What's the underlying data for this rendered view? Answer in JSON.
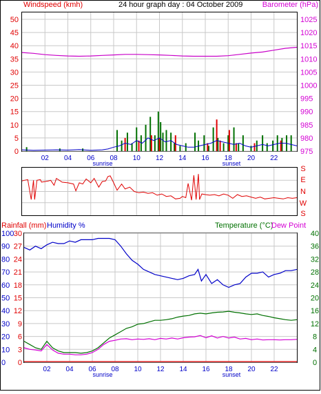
{
  "title": "24 hour graph day : 04 October 2009",
  "colors": {
    "frame": "#000000",
    "grid": "#c8c8c8",
    "background": "#ffffff",
    "red": "#e00000",
    "magenta": "#d400d4",
    "blue": "#0000c8",
    "green": "#007000",
    "pressure": "#c800c8"
  },
  "labels": {
    "sunrise": "sunrise",
    "sunset": "sunset"
  },
  "chart_data": [
    {
      "type": "bar",
      "name": "wind",
      "ylabel_left": "Windspeed (kmh)",
      "ylabel_right": "Barometer (hPa)",
      "x_ticks": [
        "02",
        "04",
        "06",
        "08",
        "10",
        "12",
        "14",
        "16",
        "18",
        "20",
        "22"
      ],
      "ylim_left": [
        0,
        50
      ],
      "left_ticks": [
        0,
        5,
        10,
        15,
        20,
        25,
        30,
        35,
        40,
        45,
        50
      ],
      "ylim_right": [
        975,
        1025
      ],
      "right_ticks": [
        975,
        980,
        985,
        990,
        995,
        1000,
        1005,
        1010,
        1015,
        1020,
        1025
      ],
      "pressure": {
        "x": [
          0,
          1,
          2,
          3,
          4,
          5,
          6,
          7,
          8,
          9,
          10,
          11,
          12,
          13,
          14,
          15,
          16,
          17,
          18,
          19,
          20,
          21,
          22,
          23,
          24
        ],
        "y": [
          1012.4,
          1012.1,
          1011.6,
          1011.3,
          1011.1,
          1011.0,
          1011.1,
          1011.3,
          1011.5,
          1011.7,
          1011.7,
          1011.6,
          1011.5,
          1011.3,
          1011.1,
          1011.0,
          1011.0,
          1011.0,
          1011.2,
          1011.7,
          1012.2,
          1012.6,
          1013.3,
          1014.0,
          1014.4
        ]
      },
      "gust_bars_green": [
        [
          0.4,
          1.5
        ],
        [
          3.3,
          1
        ],
        [
          5.3,
          1
        ],
        [
          8.3,
          8
        ],
        [
          8.7,
          4
        ],
        [
          9.2,
          7
        ],
        [
          9.6,
          3
        ],
        [
          10.0,
          9
        ],
        [
          10.4,
          6
        ],
        [
          10.8,
          10
        ],
        [
          11.2,
          13
        ],
        [
          11.6,
          6
        ],
        [
          11.9,
          15
        ],
        [
          12.1,
          11
        ],
        [
          12.3,
          7
        ],
        [
          12.6,
          8
        ],
        [
          13.0,
          7
        ],
        [
          13.3,
          3
        ],
        [
          13.8,
          2
        ],
        [
          14.3,
          3
        ],
        [
          15.1,
          7
        ],
        [
          15.4,
          4
        ],
        [
          15.9,
          6
        ],
        [
          16.3,
          2
        ],
        [
          16.7,
          9
        ],
        [
          17.1,
          5
        ],
        [
          17.6,
          3
        ],
        [
          18.0,
          6
        ],
        [
          18.5,
          9
        ],
        [
          18.9,
          3
        ],
        [
          19.3,
          6
        ],
        [
          20.0,
          2
        ],
        [
          20.5,
          4
        ],
        [
          21.0,
          6
        ],
        [
          21.4,
          3
        ],
        [
          21.9,
          4
        ],
        [
          22.3,
          6
        ],
        [
          22.7,
          5
        ],
        [
          23.1,
          6
        ],
        [
          23.5,
          6
        ]
      ],
      "gust_bars_red": [
        [
          9.0,
          5
        ],
        [
          10.2,
          4
        ],
        [
          11.3,
          6
        ],
        [
          12.0,
          5
        ],
        [
          13.4,
          6
        ],
        [
          16.2,
          3
        ],
        [
          17.0,
          12
        ],
        [
          17.3,
          4
        ],
        [
          18.1,
          8
        ],
        [
          18.7,
          3
        ],
        [
          20.3,
          3
        ],
        [
          22.6,
          4
        ]
      ],
      "avg_speed": {
        "x": [
          0,
          1,
          2,
          3,
          4,
          5,
          6,
          7,
          7.5,
          8,
          8.5,
          9,
          9.5,
          10,
          10.5,
          11,
          11.5,
          12,
          12.5,
          13,
          13.5,
          14,
          14.5,
          15,
          15.5,
          16,
          16.5,
          17,
          17.5,
          18,
          18.5,
          19,
          19.5,
          20,
          20.5,
          21,
          21.5,
          22,
          22.5,
          23,
          23.5,
          24
        ],
        "y": [
          0.5,
          0.3,
          0.4,
          0.5,
          0.4,
          0.6,
          0.3,
          0.5,
          0.8,
          1.5,
          2,
          3,
          2.5,
          4,
          3,
          5,
          4,
          5,
          3.5,
          4,
          2.5,
          2,
          1.5,
          1.5,
          2,
          2.5,
          3,
          4,
          3.5,
          3,
          2.5,
          3,
          2,
          1.5,
          2,
          2.5,
          2,
          2.5,
          3,
          3,
          2.5,
          2
        ]
      }
    },
    {
      "type": "line",
      "name": "wind_direction",
      "direction_labels": [
        "S",
        "E",
        "N",
        "W",
        "S"
      ],
      "ylim": [
        0,
        360
      ],
      "series": [
        {
          "x": [
            0,
            0.2,
            0.5,
            0.8,
            1.0,
            1.1,
            1.3,
            1.6,
            1.7,
            2.0,
            2.3,
            2.5,
            2.8,
            3.0,
            3.5,
            4.0,
            4.5,
            4.7,
            5.0,
            5.3,
            5.6,
            6.0,
            6.3,
            6.7,
            7.0,
            7.3,
            7.5,
            7.7,
            8.0,
            8.3,
            8.7,
            9.0,
            9.4,
            9.8,
            10.2,
            10.6,
            11.0,
            11.4,
            11.8,
            12.2,
            12.6,
            13.0,
            13.4,
            13.8,
            14.0,
            14.3,
            14.5,
            14.8,
            15.0,
            15.2,
            15.4,
            15.5,
            15.7,
            16.0,
            16.4,
            16.8,
            17.2,
            17.6,
            18.0,
            18.4,
            18.8,
            19.2,
            19.6,
            20.0,
            20.4,
            20.8,
            21.2,
            21.6,
            22.0,
            22.4,
            22.8,
            23.2,
            23.6,
            24.0
          ],
          "y": [
            265,
            270,
            275,
            115,
            270,
            115,
            270,
            275,
            255,
            260,
            265,
            270,
            230,
            285,
            255,
            250,
            240,
            185,
            250,
            240,
            280,
            250,
            285,
            215,
            260,
            265,
            300,
            305,
            250,
            190,
            240,
            200,
            215,
            180,
            170,
            175,
            165,
            170,
            150,
            160,
            140,
            145,
            120,
            125,
            140,
            130,
            245,
            110,
            310,
            115,
            320,
            115,
            160,
            155,
            150,
            155,
            145,
            160,
            150,
            125,
            155,
            140,
            145,
            135,
            125,
            135,
            120,
            125,
            130,
            125,
            120,
            130,
            125,
            130
          ]
        }
      ]
    },
    {
      "type": "line",
      "name": "temperature_humidity",
      "ylabel_left_a": "Rainfall (mm)",
      "ylabel_left_b": "Humidity %",
      "ylabel_right_a": "Temperature (°C)",
      "ylabel_right_b": "Dew Point",
      "x_ticks": [
        "02",
        "04",
        "06",
        "08",
        "10",
        "12",
        "14",
        "16",
        "18",
        "20",
        "22"
      ],
      "humidity_ticks": [
        0,
        10,
        20,
        30,
        40,
        50,
        60,
        70,
        80,
        90,
        100
      ],
      "rain_ticks": [
        0,
        3,
        6,
        9,
        12,
        15,
        18,
        21,
        24,
        27,
        30
      ],
      "temp_ticks": [
        0,
        4,
        8,
        12,
        16,
        20,
        24,
        28,
        32,
        36,
        40
      ],
      "ylim_humidity": [
        0,
        100
      ],
      "ylim_temp": [
        0,
        40
      ],
      "humidity": {
        "x": [
          0,
          0.5,
          1.0,
          1.5,
          2.0,
          2.5,
          3.0,
          3.5,
          4.0,
          4.5,
          5.0,
          5.5,
          6.0,
          6.5,
          7.0,
          7.5,
          8.0,
          8.5,
          9.0,
          9.5,
          10.0,
          10.5,
          11.0,
          11.5,
          12.0,
          12.5,
          13.0,
          13.5,
          14.0,
          14.5,
          15.0,
          15.3,
          15.6,
          16.0,
          16.5,
          17.0,
          17.5,
          18.0,
          18.5,
          19.0,
          19.5,
          20.0,
          20.5,
          21.0,
          21.5,
          22.0,
          22.5,
          23.0,
          23.5,
          24.0
        ],
        "y": [
          89,
          87,
          90,
          88,
          91,
          93,
          92,
          92,
          94,
          93,
          95,
          95,
          95,
          96,
          96,
          96,
          95,
          90,
          84,
          79,
          76,
          72,
          70,
          68,
          67,
          66,
          65,
          64,
          65,
          67,
          68,
          72,
          63,
          68,
          61,
          64,
          60,
          58,
          60,
          61,
          66,
          69,
          69,
          70,
          66,
          68,
          69,
          71,
          71,
          72
        ]
      },
      "temperature": {
        "x": [
          0,
          0.5,
          1.0,
          1.5,
          2.0,
          2.5,
          3.0,
          3.5,
          4.0,
          4.5,
          5.0,
          5.5,
          6.0,
          6.5,
          7.0,
          7.5,
          8.0,
          8.5,
          9.0,
          9.5,
          10.0,
          10.5,
          11.0,
          11.5,
          12.0,
          12.5,
          13.0,
          13.5,
          14.0,
          14.5,
          15.0,
          15.5,
          16.0,
          16.5,
          17.0,
          17.5,
          18.0,
          18.5,
          19.0,
          19.5,
          20.0,
          20.5,
          21.0,
          21.5,
          22.0,
          22.5,
          23.0,
          23.5,
          24.0
        ],
        "y": [
          6.5,
          5.5,
          4.5,
          4.0,
          6.5,
          4.5,
          3.5,
          3.0,
          3.0,
          3.0,
          2.8,
          3.0,
          3.5,
          4.5,
          6.0,
          7.5,
          8.5,
          9.5,
          10.5,
          11.0,
          11.8,
          12.0,
          12.5,
          13.0,
          13.0,
          13.2,
          13.5,
          14.0,
          14.3,
          14.5,
          15.0,
          15.2,
          15.0,
          15.3,
          15.5,
          15.6,
          15.8,
          15.5,
          15.3,
          15.0,
          14.8,
          15.0,
          14.5,
          14.2,
          13.8,
          13.5,
          13.2,
          13.0,
          13.2
        ]
      },
      "dew_point": {
        "x": [
          0,
          0.5,
          1.0,
          1.5,
          2.0,
          2.5,
          3.0,
          3.5,
          4.0,
          4.5,
          5.0,
          5.5,
          6.0,
          6.5,
          7.0,
          7.5,
          8.0,
          8.5,
          9.0,
          9.5,
          10.0,
          10.5,
          11.0,
          11.5,
          12.0,
          12.5,
          13.0,
          13.5,
          14.0,
          14.5,
          15.0,
          15.5,
          16.0,
          16.5,
          17.0,
          17.5,
          18.0,
          18.5,
          19.0,
          19.5,
          20.0,
          20.5,
          21.0,
          21.5,
          22.0,
          22.5,
          23.0,
          23.5,
          24.0
        ],
        "y": [
          4.5,
          4.0,
          3.8,
          3.5,
          5.5,
          3.8,
          2.8,
          2.5,
          2.5,
          2.3,
          2.3,
          2.5,
          3.0,
          4.0,
          5.5,
          6.5,
          6.8,
          7.2,
          7.3,
          7.0,
          7.2,
          7.1,
          7.3,
          7.0,
          7.4,
          7.2,
          7.5,
          7.2,
          7.6,
          7.8,
          7.9,
          8.3,
          7.6,
          8.2,
          7.5,
          8.0,
          7.5,
          7.8,
          7.2,
          7.4,
          7.0,
          7.2,
          6.9,
          7.0,
          7.0,
          6.9,
          7.0,
          7.0,
          7.1
        ]
      },
      "rainfall": {
        "x": [
          0,
          24
        ],
        "y": [
          0,
          0
        ]
      }
    }
  ]
}
